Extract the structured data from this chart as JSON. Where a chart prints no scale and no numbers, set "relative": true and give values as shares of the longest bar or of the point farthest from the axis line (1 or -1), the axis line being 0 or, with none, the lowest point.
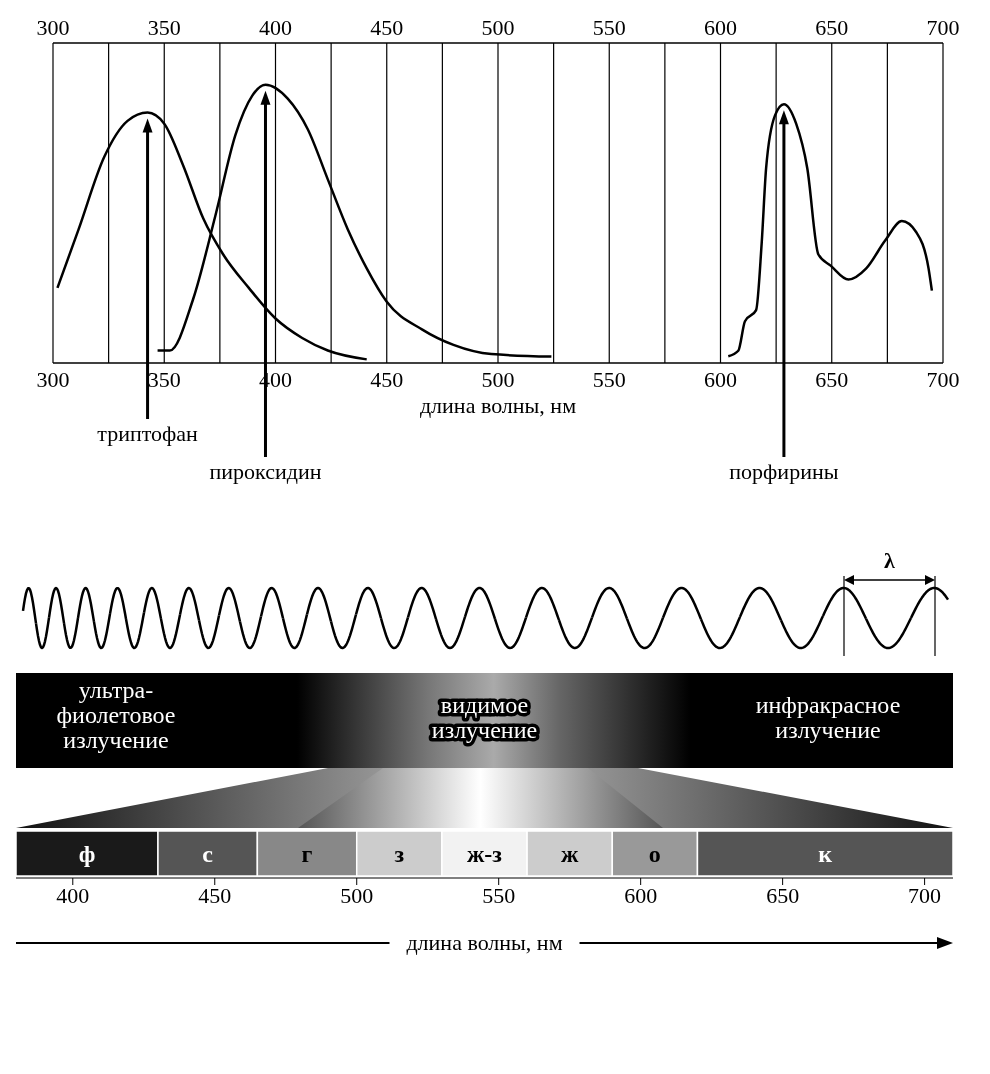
{
  "chart_data": [
    {
      "type": "line",
      "xlabel": "длина волны, нм",
      "relative": true,
      "grid": "x",
      "marker": "none",
      "line_style": "solid",
      "xlim": [
        300,
        700
      ],
      "xticks": [
        300,
        {
          "value": 325,
          "label": null
        },
        350,
        {
          "value": 375,
          "label": null
        },
        400,
        {
          "value": 425,
          "label": null
        },
        450,
        {
          "value": 475,
          "label": null
        },
        500,
        {
          "value": 525,
          "label": null
        },
        550,
        {
          "value": 575,
          "label": null
        },
        600,
        {
          "value": 625,
          "label": null
        },
        650,
        {
          "value": 675,
          "label": null
        },
        700
      ],
      "x2lim": [
        300,
        700
      ],
      "x2ticks": [
        300,
        350,
        400,
        450,
        500,
        550,
        600,
        650,
        700
      ],
      "series": [
        {
          "color": "#000000",
          "x": [
            302,
            311.5,
            323,
            333.5,
            342.5,
            350,
            358.5,
            367.5,
            376.5,
            388,
            400,
            412,
            423.5,
            441
          ],
          "values": [
            0.27,
            0.48,
            0.74,
            0.87,
            0.9,
            0.86,
            0.71,
            0.52,
            0.39,
            0.27,
            0.16,
            0.09,
            0.045,
            0.013
          ]
        },
        {
          "color": "#000000",
          "x": [
            347,
            352.5,
            363,
            373,
            382,
            389.5,
            395.5,
            405.5,
            414.5,
            423.5,
            432.5,
            441,
            450,
            466,
            480,
            497,
            524
          ],
          "values": [
            0.045,
            0.045,
            0.23,
            0.53,
            0.82,
            0.96,
            1,
            0.95,
            0.84,
            0.66,
            0.48,
            0.34,
            0.22,
            0.12,
            0.065,
            0.032,
            0.023
          ]
        },
        {
          "color": "#000000",
          "x": [
            603.5,
            608,
            611,
            616,
            618.5,
            620.5,
            624.5,
            628.5,
            634,
            639,
            644,
            649.5,
            657.5,
            665.5,
            674,
            681.5,
            688,
            693.5,
            695
          ],
          "values": [
            0.024,
            0.044,
            0.15,
            0.19,
            0.43,
            0.7,
            0.89,
            0.93,
            0.86,
            0.7,
            0.39,
            0.35,
            0.3,
            0.34,
            0.44,
            0.51,
            0.47,
            0.34,
            0.26
          ]
        }
      ],
      "annotations": [
        "триптофан",
        "пироксидин",
        "порфирины"
      ]
    },
    {
      "type": "bar",
      "orientation": "horizontal",
      "categories": [
        null
      ],
      "xlim": [
        380,
        710
      ],
      "xticks": [
        400,
        450,
        500,
        550,
        600,
        650,
        700
      ],
      "xlabel": "длина волны, нм",
      "series": [
        {
          "name": "ф",
          "color": "#1a1a1a",
          "base": [
            380
          ],
          "values": [
            50
          ]
        },
        {
          "name": "с",
          "color": "#555555",
          "base": [
            430
          ],
          "values": [
            35
          ]
        },
        {
          "name": "г",
          "color": "#888888",
          "base": [
            465
          ],
          "values": [
            35
          ]
        },
        {
          "name": "з",
          "color": "#cccccc",
          "base": [
            500
          ],
          "values": [
            30
          ]
        },
        {
          "name": "ж-з",
          "color": "#f2f2f2",
          "base": [
            530
          ],
          "values": [
            30
          ]
        },
        {
          "name": "ж",
          "color": "#cccccc",
          "base": [
            560
          ],
          "values": [
            30
          ]
        },
        {
          "name": "о",
          "color": "#999999",
          "base": [
            590
          ],
          "values": [
            30
          ]
        },
        {
          "name": "к",
          "color": "#555555",
          "base": [
            620
          ],
          "values": [
            90
          ]
        }
      ],
      "annotations": [
        "λ",
        "ультра-\nфиолетовое\nизлучение",
        "видимое\nизлучение",
        "инфракрасное\nизлучение"
      ]
    }
  ]
}
